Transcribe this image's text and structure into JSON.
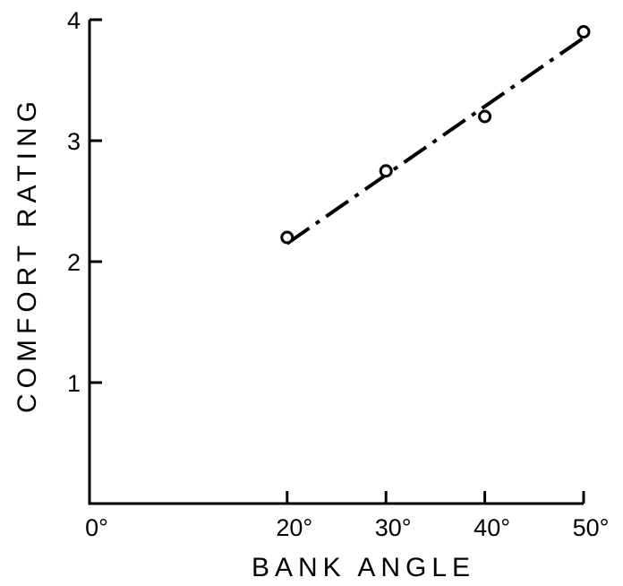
{
  "chart_data": {
    "type": "scatter",
    "title": "",
    "xlabel": "BANK ANGLE",
    "ylabel": "COMFORT RATING",
    "xlim": [
      0,
      50
    ],
    "ylim": [
      0,
      4
    ],
    "x_ticks": [
      {
        "value": 0,
        "label": "0°"
      },
      {
        "value": 20,
        "label": "20°"
      },
      {
        "value": 30,
        "label": "30°"
      },
      {
        "value": 40,
        "label": "40°"
      },
      {
        "value": 50,
        "label": "50°"
      }
    ],
    "y_ticks": [
      {
        "value": 1,
        "label": "1"
      },
      {
        "value": 2,
        "label": "2"
      },
      {
        "value": 3,
        "label": "3"
      },
      {
        "value": 4,
        "label": "4"
      }
    ],
    "grid": false,
    "series": [
      {
        "points": [
          {
            "x": 20,
            "y": 2.2
          },
          {
            "x": 30,
            "y": 2.75
          },
          {
            "x": 40,
            "y": 3.2
          },
          {
            "x": 50,
            "y": 3.9
          }
        ],
        "marker": "open-circle"
      }
    ],
    "fit_line": {
      "style": "dash-dot",
      "from": {
        "x": 20,
        "y": 2.15
      },
      "to": {
        "x": 50,
        "y": 3.85
      }
    }
  }
}
